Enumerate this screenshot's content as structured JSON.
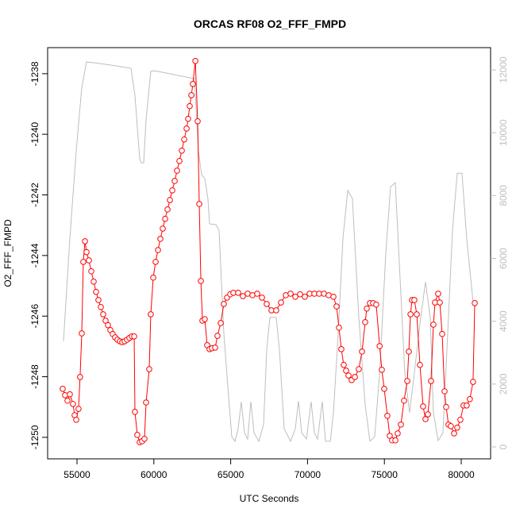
{
  "chart_data": {
    "type": "line",
    "title": "ORCAS RF08 O2_FFF_FMPD",
    "xlabel": "UTC Seconds",
    "ylabel": "O2_FFF_FMPD",
    "xlim": [
      53089,
      81911
    ],
    "xticks": [
      55000,
      60000,
      65000,
      70000,
      75000,
      80000
    ],
    "ylim": [
      -1250.71,
      -1237.14
    ],
    "yticks": [
      -1250,
      -1248,
      -1246,
      -1244,
      -1242,
      -1240,
      -1238
    ],
    "y2lim": [
      -379,
      12707
    ],
    "y2ticks": [
      0,
      2000,
      4000,
      6000,
      8000,
      10000,
      12000
    ],
    "series": [
      {
        "color": "#bebebe",
        "axis": "y2",
        "markers": false,
        "x": [
          54120,
          54535,
          54950,
          55310,
          55620,
          56190,
          57220,
          58510,
          58770,
          59080,
          59185,
          59340,
          59495,
          59800,
          60060,
          61090,
          62640,
          62900,
          63110,
          63315,
          63520,
          63625,
          64040,
          64245,
          64555,
          64865,
          65070,
          65280,
          65485,
          65690,
          65900,
          66105,
          66310,
          66520,
          66830,
          67140,
          67345,
          67550,
          67960,
          68170,
          68480,
          68895,
          69205,
          69410,
          69620,
          69930,
          70235,
          70445,
          70650,
          70960,
          71170,
          71480,
          71685,
          71995,
          72305,
          72615,
          72920,
          73335,
          73750,
          74060,
          74370,
          74690,
          75090,
          75400,
          75710,
          76020,
          76330,
          76640,
          76950,
          77365,
          77675,
          77985,
          78190,
          78500,
          78810,
          79120,
          79430,
          79740,
          80050,
          80355,
          80770
        ],
        "values": [
          3360,
          6640,
          9420,
          11440,
          12250,
          12220,
          12150,
          12050,
          11190,
          9170,
          9040,
          9040,
          10430,
          11950,
          11970,
          11870,
          11720,
          9420,
          8660,
          8540,
          7900,
          7100,
          7070,
          6890,
          3610,
          1590,
          330,
          180,
          580,
          1440,
          450,
          250,
          1440,
          450,
          180,
          710,
          3110,
          4120,
          4120,
          3110,
          580,
          180,
          580,
          1460,
          450,
          250,
          1440,
          450,
          250,
          1440,
          180,
          180,
          1090,
          3610,
          6640,
          8160,
          7900,
          4120,
          1340,
          180,
          330,
          2350,
          6140,
          8280,
          8410,
          5380,
          2350,
          1090,
          2350,
          4120,
          5250,
          4120,
          1090,
          200,
          450,
          3610,
          6890,
          8710,
          8710,
          6640,
          4620
        ]
      },
      {
        "color": "#ff0000",
        "axis": "y",
        "markers": true,
        "x": [
          54070,
          54225,
          54380,
          54535,
          54740,
          54845,
          54950,
          55100,
          55200,
          55310,
          55410,
          55520,
          55620,
          55775,
          55930,
          56085,
          56240,
          56395,
          56550,
          56705,
          56860,
          57015,
          57170,
          57325,
          57480,
          57635,
          57790,
          57945,
          58100,
          58255,
          58410,
          58570,
          58720,
          58770,
          58925,
          59080,
          59235,
          59390,
          59495,
          59700,
          59800,
          59960,
          60115,
          60270,
          60425,
          60580,
          60735,
          60890,
          61045,
          61200,
          61355,
          61510,
          61665,
          61820,
          61975,
          62130,
          62230,
          62335,
          62440,
          62540,
          62700,
          62850,
          62955,
          63060,
          63160,
          63315,
          63470,
          63625,
          63780,
          63990,
          64140,
          64350,
          64555,
          64760,
          64970,
          65175,
          65485,
          65795,
          66105,
          66415,
          66725,
          67035,
          67345,
          67655,
          67960,
          68275,
          68585,
          68895,
          69205,
          69515,
          69825,
          70135,
          70445,
          70755,
          71065,
          71375,
          71685,
          71890,
          72045,
          72200,
          72355,
          72510,
          72665,
          72870,
          73080,
          73335,
          73545,
          73750,
          73855,
          74060,
          74265,
          74470,
          74690,
          74835,
          74990,
          75195,
          75350,
          75505,
          75715,
          75865,
          76075,
          76280,
          76490,
          76590,
          76700,
          76800,
          76950,
          77110,
          77315,
          77520,
          77675,
          77830,
          78035,
          78190,
          78295,
          78500,
          78605,
          78760,
          78915,
          79020,
          79170,
          79325,
          79535,
          79740,
          79945,
          80150,
          80355,
          80560,
          80770,
          80880
        ],
        "values": [
          -1248.4,
          -1248.61,
          -1248.79,
          -1248.58,
          -1248.9,
          -1249.27,
          -1249.42,
          -1249.06,
          -1248.01,
          -1246.57,
          -1244.21,
          -1243.53,
          -1243.89,
          -1244.16,
          -1244.52,
          -1244.86,
          -1245.2,
          -1245.47,
          -1245.7,
          -1245.94,
          -1246.15,
          -1246.3,
          -1246.46,
          -1246.59,
          -1246.7,
          -1246.78,
          -1246.83,
          -1246.86,
          -1246.83,
          -1246.78,
          -1246.72,
          -1246.67,
          -1246.67,
          -1249.16,
          -1249.92,
          -1250.16,
          -1250.13,
          -1250.05,
          -1248.85,
          -1247.75,
          -1245.94,
          -1244.73,
          -1244.21,
          -1243.82,
          -1243.45,
          -1243.11,
          -1242.79,
          -1242.48,
          -1242.17,
          -1241.85,
          -1241.54,
          -1241.2,
          -1240.88,
          -1240.54,
          -1240.17,
          -1239.81,
          -1239.49,
          -1239.07,
          -1238.71,
          -1238.34,
          -1237.58,
          -1239.57,
          -1242.3,
          -1244.84,
          -1246.15,
          -1246.1,
          -1246.96,
          -1247.09,
          -1247.06,
          -1247.04,
          -1246.65,
          -1246.23,
          -1245.6,
          -1245.39,
          -1245.28,
          -1245.23,
          -1245.23,
          -1245.34,
          -1245.26,
          -1245.31,
          -1245.26,
          -1245.39,
          -1245.6,
          -1245.81,
          -1245.81,
          -1245.55,
          -1245.31,
          -1245.26,
          -1245.36,
          -1245.28,
          -1245.36,
          -1245.26,
          -1245.26,
          -1245.26,
          -1245.26,
          -1245.31,
          -1245.36,
          -1245.68,
          -1246.38,
          -1247.09,
          -1247.61,
          -1247.8,
          -1247.96,
          -1248.11,
          -1248.01,
          -1247.75,
          -1247.17,
          -1246.2,
          -1245.75,
          -1245.57,
          -1245.57,
          -1245.62,
          -1246.99,
          -1247.77,
          -1248.4,
          -1249.29,
          -1249.95,
          -1250.1,
          -1250.1,
          -1249.87,
          -1249.58,
          -1248.79,
          -1248.14,
          -1247.17,
          -1245.94,
          -1245.47,
          -1245.47,
          -1245.94,
          -1247.61,
          -1248.98,
          -1249.4,
          -1249.24,
          -1248.14,
          -1246.28,
          -1245.55,
          -1245.26,
          -1245.55,
          -1246.59,
          -1248.48,
          -1249,
          -1249.58,
          -1249.63,
          -1249.87,
          -1249.68,
          -1249.42,
          -1248.95,
          -1248.95,
          -1248.74,
          -1248.17,
          -1245.57
        ]
      }
    ]
  }
}
